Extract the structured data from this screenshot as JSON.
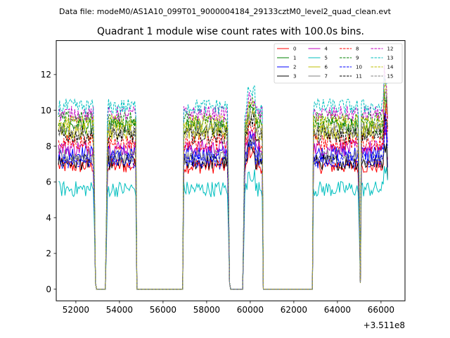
{
  "suptitle": "Data file: modeM0/AS1A10_099T01_9000004184_29133cztM0_level2_quad_clean.evt",
  "chart_data": {
    "type": "line",
    "title": "Quadrant 1 module wise count rates with 100.0s bins.",
    "xlabel": "",
    "ylabel": "",
    "x_offset_label": "+3.511e8",
    "xlim": [
      51100,
      67100
    ],
    "ylim": [
      -0.65,
      13.9
    ],
    "xticks": [
      52000,
      54000,
      56000,
      58000,
      60000,
      62000,
      64000,
      66000
    ],
    "yticks": [
      0,
      2,
      4,
      6,
      8,
      10,
      12
    ],
    "xtick_labels": [
      "52000",
      "54000",
      "56000",
      "58000",
      "60000",
      "62000",
      "64000",
      "66000"
    ],
    "ytick_labels": [
      "0",
      "2",
      "4",
      "6",
      "8",
      "10",
      "12"
    ],
    "grid": false,
    "legend_placement": "top-right",
    "legend_columns": 4,
    "x_segments": [
      [
        51200,
        52800
      ],
      [
        52850,
        52900
      ],
      [
        52950,
        53350
      ],
      [
        53400,
        53450
      ],
      [
        53500,
        54750
      ],
      [
        54800,
        56900
      ],
      [
        56950,
        58950
      ],
      [
        59000,
        59050
      ],
      [
        59100,
        59650
      ],
      [
        59700,
        59750
      ],
      [
        59800,
        60550
      ],
      [
        60600,
        62850
      ],
      [
        62900,
        64950
      ],
      [
        65000,
        65050
      ],
      [
        65100,
        66150
      ],
      [
        66200,
        66300
      ]
    ],
    "series": [
      {
        "name": "0",
        "color": "#ff0000",
        "dash": "solid",
        "level": 6.9
      },
      {
        "name": "1",
        "color": "#008000",
        "dash": "solid",
        "level": 9.1
      },
      {
        "name": "2",
        "color": "#0000ff",
        "dash": "solid",
        "level": 7.6
      },
      {
        "name": "3",
        "color": "#000000",
        "dash": "solid",
        "level": 7.1
      },
      {
        "name": "4",
        "color": "#bf00bf",
        "dash": "solid",
        "level": 7.9
      },
      {
        "name": "5",
        "color": "#00bfbf",
        "dash": "solid",
        "level": 5.6
      },
      {
        "name": "6",
        "color": "#bfbf00",
        "dash": "solid",
        "level": 8.8
      },
      {
        "name": "7",
        "color": "#808080",
        "dash": "solid",
        "level": 7.4
      },
      {
        "name": "8",
        "color": "#ff0000",
        "dash": "dashed",
        "level": 8.2
      },
      {
        "name": "9",
        "color": "#008000",
        "dash": "dashed",
        "level": 9.5
      },
      {
        "name": "10",
        "color": "#0000ff",
        "dash": "dashed",
        "level": 7.2
      },
      {
        "name": "11",
        "color": "#000000",
        "dash": "dashed",
        "level": 8.6
      },
      {
        "name": "12",
        "color": "#bf00bf",
        "dash": "dashed",
        "level": 9.8
      },
      {
        "name": "13",
        "color": "#00bfbf",
        "dash": "dashed",
        "level": 10.2
      },
      {
        "name": "14",
        "color": "#bfbf00",
        "dash": "dashed",
        "level": 9.3
      },
      {
        "name": "15",
        "color": "#808080",
        "dash": "dashed",
        "level": 8.9
      }
    ]
  }
}
